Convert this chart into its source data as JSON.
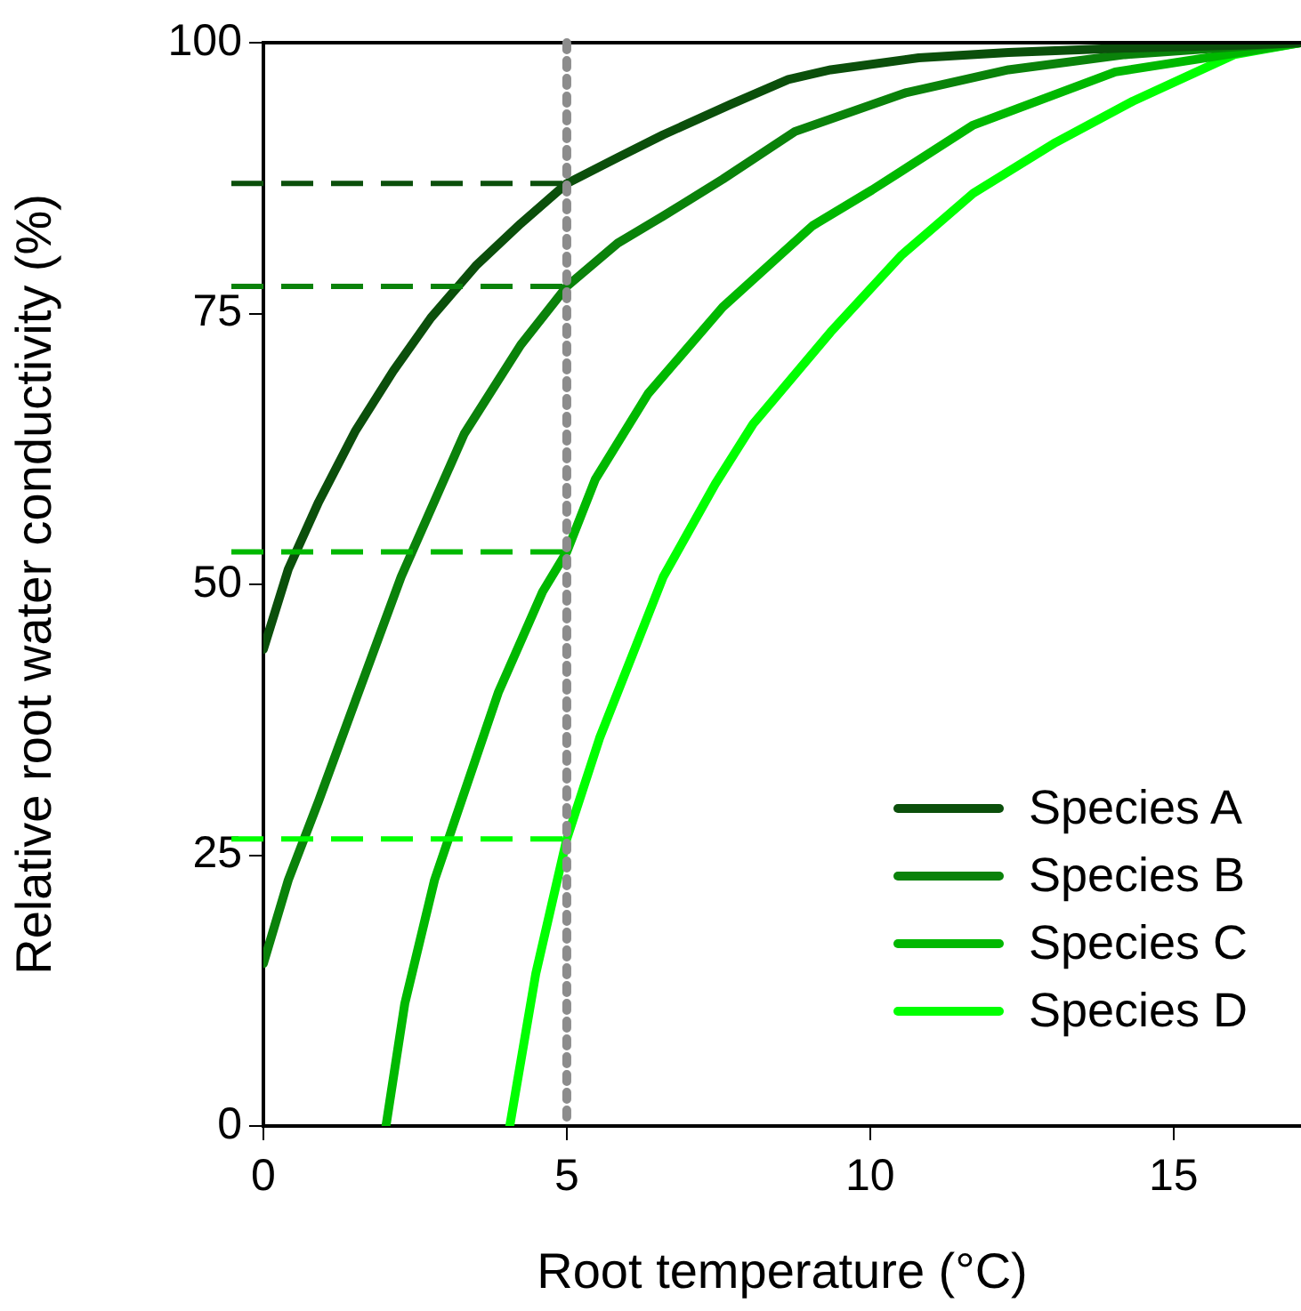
{
  "chart_data": {
    "type": "line",
    "xlabel": "Root temperature (°C)",
    "ylabel": "Relative root water conductivity (%)",
    "xlim": [
      0,
      17.1
    ],
    "xticks": [
      0,
      5,
      10,
      15
    ],
    "ylim": [
      0,
      100
    ],
    "yticks": [
      0,
      25,
      50,
      75,
      100
    ],
    "grid": false,
    "legend": "bottom right",
    "marker": "none",
    "line_style": "solid",
    "series": [
      {
        "name": "Species A",
        "color": "#0b4f0b",
        "x": [
          0,
          0.41,
          0.91,
          1.52,
          2.14,
          2.76,
          3.5,
          4.24,
          5,
          5.84,
          6.59,
          7.7,
          8.65,
          9.35,
          10.8,
          12.28,
          14.2,
          16.2,
          17.1
        ],
        "values": [
          44,
          51.4,
          57.6,
          64.2,
          69.7,
          74.6,
          79.4,
          83.3,
          87,
          89.4,
          91.5,
          94.3,
          96.6,
          97.5,
          98.6,
          99.1,
          99.5,
          99.8,
          100
        ]
      },
      {
        "name": "Species B",
        "color": "#0a820a",
        "x": [
          0,
          0.41,
          0.91,
          1.52,
          2.27,
          3.31,
          4.24,
          5,
          5.84,
          6.59,
          7.57,
          8.76,
          10.6,
          12.28,
          14.2,
          16.2,
          17.1
        ],
        "values": [
          15,
          22.7,
          30,
          39.3,
          50.7,
          63.9,
          72.1,
          77.5,
          81.5,
          84,
          87.4,
          91.8,
          95.4,
          97.5,
          98.9,
          99.7,
          100
        ]
      },
      {
        "name": "Species C",
        "color": "#00b800",
        "x": [
          2.02,
          2.33,
          2.82,
          3.87,
          4.6,
          5,
          5.47,
          6.34,
          7.57,
          9.05,
          10.03,
          11.7,
          14.04,
          16,
          17.1
        ],
        "values": [
          0,
          11.3,
          22.7,
          40,
          49.3,
          53,
          59.7,
          67.6,
          75.6,
          83.1,
          86.4,
          92.4,
          97.3,
          99,
          100
        ]
      },
      {
        "name": "Species D",
        "color": "#00ff00",
        "x": [
          4.06,
          4.49,
          5,
          5.54,
          6.59,
          7.45,
          8.07,
          9.35,
          10.52,
          11.7,
          13.06,
          14.33,
          16,
          17.1
        ],
        "values": [
          0,
          14.1,
          26.5,
          35.8,
          50.7,
          59.3,
          64.8,
          73.3,
          80.4,
          86.1,
          90.8,
          94.6,
          98.9,
          100
        ]
      }
    ],
    "ref_lines": [
      {
        "axis": "x",
        "value": 5,
        "color": "#8c8c8c",
        "line_style": "dotted"
      },
      {
        "axis": "y",
        "value": 87,
        "color": "#0b4f0b",
        "line_style": "dashed"
      },
      {
        "axis": "y",
        "value": 77.5,
        "color": "#0a820a",
        "line_style": "dashed"
      },
      {
        "axis": "y",
        "value": 53,
        "color": "#00b800",
        "line_style": "dashed"
      },
      {
        "axis": "y",
        "value": 26.5,
        "color": "#00ff00",
        "line_style": "dashed"
      }
    ]
  }
}
